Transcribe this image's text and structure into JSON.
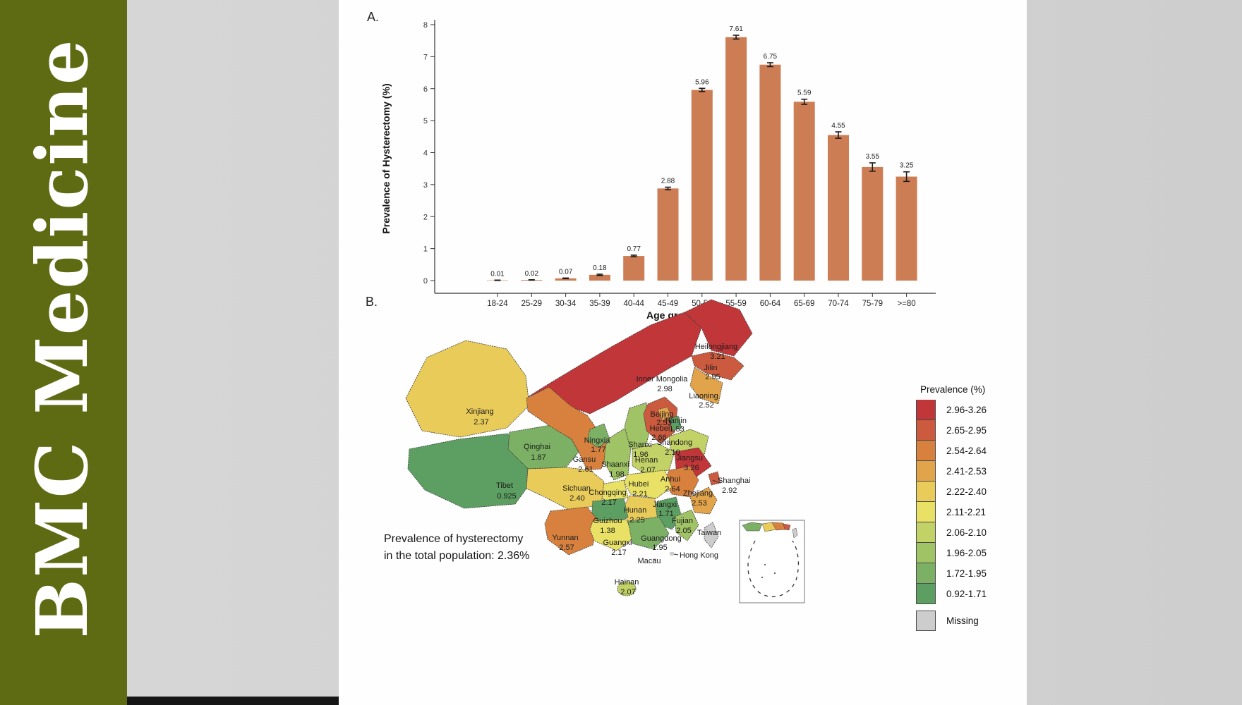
{
  "sidebar": {
    "journal_name": "BMC Medicine",
    "bg_color": "#5f6b13",
    "text_color": "#ffffff"
  },
  "panel_a": {
    "label": "A."
  },
  "panel_b": {
    "label": "B.",
    "annotation": {
      "line1": "Prevalence of hysterectomy",
      "line2": "in the total population: 2.36%"
    }
  },
  "chart_data": [
    {
      "type": "bar",
      "panel": "A",
      "categories": [
        "18-24",
        "25-29",
        "30-34",
        "35-39",
        "40-44",
        "45-49",
        "50-54",
        "55-59",
        "60-64",
        "65-69",
        "70-74",
        "75-79",
        ">=80"
      ],
      "values": [
        0.01,
        0.02,
        0.07,
        0.18,
        0.77,
        2.88,
        5.96,
        7.61,
        6.75,
        5.59,
        4.55,
        3.55,
        3.25
      ],
      "errors": [
        0.005,
        0.006,
        0.01,
        0.02,
        0.025,
        0.04,
        0.05,
        0.06,
        0.06,
        0.08,
        0.1,
        0.13,
        0.15
      ],
      "title": "",
      "xlabel": "Age group (year)",
      "ylabel": "Prevalence of Hysterectomy (%)",
      "ylim": [
        0,
        8
      ],
      "grid": false,
      "bar_color": "#cd7d54",
      "error_color": "#1a1a1a"
    },
    {
      "type": "choropleth",
      "panel": "B",
      "region": "China, prevalence of hysterectomy by province (%)",
      "provinces": [
        {
          "name": "Heilongjiang",
          "value": "3.21",
          "class": "c1"
        },
        {
          "name": "Jilin",
          "value": "2.95",
          "class": "c2"
        },
        {
          "name": "Inner Mongolia",
          "value": "2.98",
          "class": "c1"
        },
        {
          "name": "Liaoning",
          "value": "2.52",
          "class": "c4"
        },
        {
          "name": "Xinjiang",
          "value": "2.37",
          "class": "c5"
        },
        {
          "name": "Beijing",
          "value": "2.53",
          "class": "c4"
        },
        {
          "name": "Tianjin",
          "value": "1.53",
          "class": "c10"
        },
        {
          "name": "Hebei",
          "value": "2.66",
          "class": "c2"
        },
        {
          "name": "Shanxi",
          "value": "1.96",
          "class": "c8"
        },
        {
          "name": "Shandong",
          "value": "2.10",
          "class": "c7"
        },
        {
          "name": "Ningxia",
          "value": "1.77",
          "class": "c9"
        },
        {
          "name": "Gansu",
          "value": "2.61",
          "class": "c3"
        },
        {
          "name": "Shaanxi",
          "value": "1.98",
          "class": "c8"
        },
        {
          "name": "Qinghai",
          "value": "1.87",
          "class": "c9"
        },
        {
          "name": "Henan",
          "value": "2.07",
          "class": "c7"
        },
        {
          "name": "Jiangsu",
          "value": "3.26",
          "class": "c1"
        },
        {
          "name": "Shanghai",
          "value": "2.92",
          "class": "c2"
        },
        {
          "name": "Anhui",
          "value": "2.64",
          "class": "c3"
        },
        {
          "name": "Zhejiang",
          "value": "2.53",
          "class": "c4"
        },
        {
          "name": "Hubei",
          "value": "2.21",
          "class": "c6"
        },
        {
          "name": "Chongqing",
          "value": "2.17",
          "class": "c6"
        },
        {
          "name": "Sichuan",
          "value": "2.40",
          "class": "c5"
        },
        {
          "name": "Tibet",
          "value": "0.925",
          "class": "c10"
        },
        {
          "name": "Hunan",
          "value": "2.25",
          "class": "c5"
        },
        {
          "name": "Jiangxi",
          "value": "1.71",
          "class": "c10"
        },
        {
          "name": "Fujian",
          "value": "2.05",
          "class": "c8"
        },
        {
          "name": "Guizhou",
          "value": "1.38",
          "class": "c10"
        },
        {
          "name": "Yunnan",
          "value": "2.57",
          "class": "c3"
        },
        {
          "name": "Guangxi",
          "value": "2.17",
          "class": "c6"
        },
        {
          "name": "Guangdong",
          "value": "1.95",
          "class": "c9"
        },
        {
          "name": "Hainan",
          "value": "2.07",
          "class": "c7"
        },
        {
          "name": "Taiwan",
          "value": "",
          "class": "cmiss"
        },
        {
          "name": "Hong Kong",
          "value": "",
          "class": "cmiss"
        },
        {
          "name": "Macau",
          "value": "",
          "class": "cmiss"
        }
      ],
      "legend": {
        "title": "Prevalence (%)",
        "items": [
          {
            "range": "2.96-3.26",
            "color": "#c13639"
          },
          {
            "range": "2.65-2.95",
            "color": "#cb5a3f"
          },
          {
            "range": "2.54-2.64",
            "color": "#d8813e"
          },
          {
            "range": "2.41-2.53",
            "color": "#e2a44b"
          },
          {
            "range": "2.22-2.40",
            "color": "#e9cb5a"
          },
          {
            "range": "2.11-2.21",
            "color": "#e9e066"
          },
          {
            "range": "2.06-2.10",
            "color": "#c2d266"
          },
          {
            "range": "1.96-2.05",
            "color": "#a0c366"
          },
          {
            "range": "1.72-1.95",
            "color": "#7cb065"
          },
          {
            "range": "0.92-1.71",
            "color": "#5d9f62"
          }
        ],
        "missing_label": "Missing",
        "missing_color": "#cdcdcd"
      }
    }
  ]
}
